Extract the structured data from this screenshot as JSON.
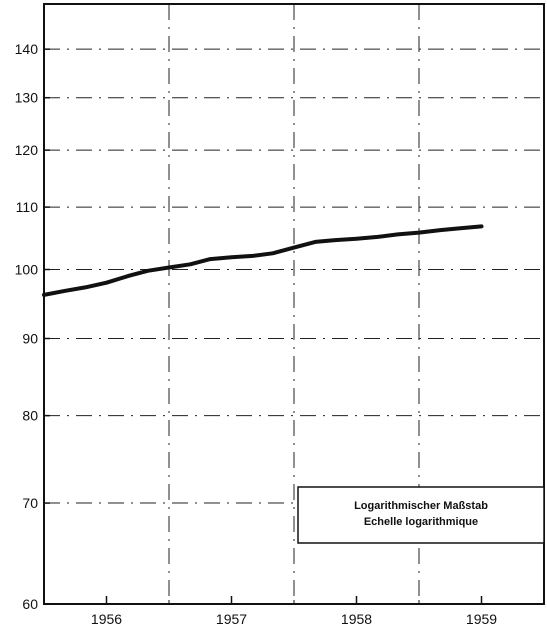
{
  "chart_data": {
    "type": "line",
    "title": "",
    "xlabel": "",
    "ylabel": "",
    "y_scale": "log",
    "ylim": [
      60,
      150
    ],
    "xlim": [
      1955.5,
      1959.5
    ],
    "x_ticks": [
      {
        "value": 1956,
        "label": "1956"
      },
      {
        "value": 1957,
        "label": "1957"
      },
      {
        "value": 1958,
        "label": "1958"
      },
      {
        "value": 1959,
        "label": "1959"
      }
    ],
    "y_ticks": [
      {
        "value": 60,
        "label": "60"
      },
      {
        "value": 70,
        "label": "70"
      },
      {
        "value": 80,
        "label": "80"
      },
      {
        "value": 90,
        "label": "90"
      },
      {
        "value": 100,
        "label": "100"
      },
      {
        "value": 110,
        "label": "110"
      },
      {
        "value": 120,
        "label": "120"
      },
      {
        "value": 130,
        "label": "130"
      },
      {
        "value": 140,
        "label": "140"
      }
    ],
    "grid": "dash-dot",
    "series": [
      {
        "color": "#111111",
        "x": [
          1955.5,
          1955.67,
          1955.83,
          1956.0,
          1956.17,
          1956.33,
          1956.5,
          1956.67,
          1956.83,
          1957.0,
          1957.17,
          1957.33,
          1957.5,
          1957.67,
          1957.83,
          1958.0,
          1958.17,
          1958.33,
          1958.5,
          1958.67,
          1958.83,
          1959.0
        ],
        "values": [
          96.2,
          96.8,
          97.3,
          98.0,
          99.0,
          99.8,
          100.3,
          100.8,
          101.6,
          101.9,
          102.1,
          102.5,
          103.4,
          104.3,
          104.6,
          104.8,
          105.1,
          105.5,
          105.8,
          106.2,
          106.5,
          106.8
        ]
      }
    ],
    "legend_box": {
      "lines": [
        "Logarithmischer Maßstab",
        "Echelle logarithmique"
      ],
      "placement": "bottom-right"
    }
  }
}
